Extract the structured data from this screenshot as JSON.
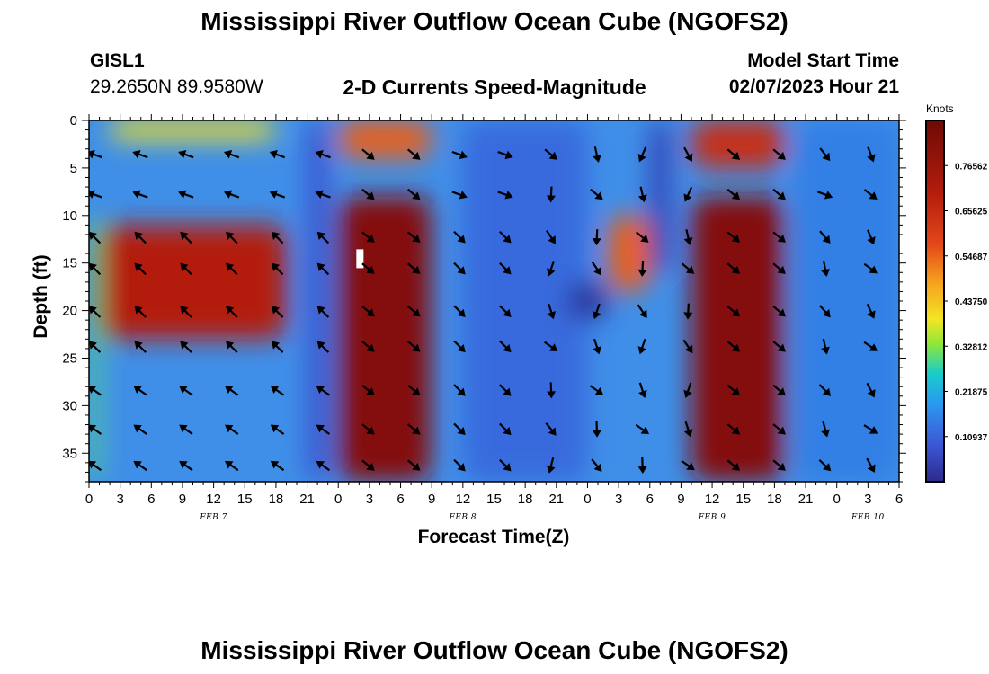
{
  "header": {
    "title": "Mississippi River Outflow Ocean Cube (NGOFS2)",
    "station": "GISL1",
    "coords": "29.2650N  89.9580W",
    "subtitle": "2-D Currents Speed-Magnitude",
    "model_start_label": "Model Start Time",
    "model_start_value": "02/07/2023 Hour 21"
  },
  "footer": {
    "title": "Mississippi River Outflow Ocean Cube (NGOFS2)"
  },
  "chart_data": {
    "type": "heatmap",
    "title": "2-D Currents Speed-Magnitude",
    "xlabel": "Forecast Time(Z)",
    "ylabel": "Depth (ft)",
    "xlim": [
      0,
      78
    ],
    "ylim": [
      0,
      38
    ],
    "x_ticks": [
      {
        "v": 0,
        "label": "0"
      },
      {
        "v": 3,
        "label": "3"
      },
      {
        "v": 6,
        "label": "6"
      },
      {
        "v": 9,
        "label": "9"
      },
      {
        "v": 12,
        "label": "12"
      },
      {
        "v": 15,
        "label": "15"
      },
      {
        "v": 18,
        "label": "18"
      },
      {
        "v": 21,
        "label": "21"
      },
      {
        "v": 24,
        "label": "0"
      },
      {
        "v": 27,
        "label": "3"
      },
      {
        "v": 30,
        "label": "6"
      },
      {
        "v": 33,
        "label": "9"
      },
      {
        "v": 36,
        "label": "12"
      },
      {
        "v": 39,
        "label": "15"
      },
      {
        "v": 42,
        "label": "18"
      },
      {
        "v": 45,
        "label": "21"
      },
      {
        "v": 48,
        "label": "0"
      },
      {
        "v": 51,
        "label": "3"
      },
      {
        "v": 54,
        "label": "6"
      },
      {
        "v": 57,
        "label": "9"
      },
      {
        "v": 60,
        "label": "12"
      },
      {
        "v": 63,
        "label": "15"
      },
      {
        "v": 66,
        "label": "18"
      },
      {
        "v": 69,
        "label": "21"
      },
      {
        "v": 72,
        "label": "0"
      },
      {
        "v": 75,
        "label": "3"
      },
      {
        "v": 78,
        "label": "6"
      }
    ],
    "date_labels": [
      {
        "v": 12,
        "label": "FEB 7"
      },
      {
        "v": 36,
        "label": "FEB 8"
      },
      {
        "v": 60,
        "label": "FEB 9"
      },
      {
        "v": 75,
        "label": "FEB 10"
      }
    ],
    "y_ticks": [
      0,
      5,
      10,
      15,
      20,
      25,
      30,
      35
    ],
    "colorbar": {
      "label": "Knots",
      "min": 0,
      "max": 0.875,
      "ticks": [
        "0.10937",
        "0.21875",
        "0.32812",
        "0.43750",
        "0.54687",
        "0.65625",
        "0.76562"
      ],
      "tick_values": [
        0.109375,
        0.21875,
        0.328125,
        0.4375,
        0.546875,
        0.65625,
        0.765625
      ]
    },
    "speed_bands": [
      {
        "x": [
          0,
          1
        ],
        "depth": [
          10,
          38
        ],
        "speed": 0.3
      },
      {
        "x": [
          1,
          19
        ],
        "depth": [
          11,
          23
        ],
        "speed": 0.7
      },
      {
        "x": [
          2,
          18
        ],
        "depth": [
          0,
          2
        ],
        "speed": 0.4
      },
      {
        "x": [
          21,
          23
        ],
        "depth": [
          0,
          38
        ],
        "speed": 0.08
      },
      {
        "x": [
          24,
          33
        ],
        "depth": [
          0,
          4
        ],
        "speed": 0.55
      },
      {
        "x": [
          24,
          33
        ],
        "depth": [
          8,
          38
        ],
        "speed": 0.82
      },
      {
        "x": [
          36,
          48
        ],
        "depth": [
          0,
          38
        ],
        "speed": 0.12
      },
      {
        "x": [
          46,
          50
        ],
        "depth": [
          17,
          21
        ],
        "speed": 0.02
      },
      {
        "x": [
          50,
          54
        ],
        "depth": [
          10,
          18
        ],
        "speed": 0.55
      },
      {
        "x": [
          54,
          56
        ],
        "depth": [
          0,
          16
        ],
        "speed": 0.05
      },
      {
        "x": [
          58,
          67
        ],
        "depth": [
          0,
          5
        ],
        "speed": 0.65
      },
      {
        "x": [
          58,
          67
        ],
        "depth": [
          8,
          38
        ],
        "speed": 0.82
      },
      {
        "x": [
          68,
          78
        ],
        "depth": [
          0,
          38
        ],
        "speed": 0.15
      }
    ],
    "annotations": [
      {
        "x": 26,
        "depth": 14.5,
        "type": "white-marker"
      }
    ]
  }
}
